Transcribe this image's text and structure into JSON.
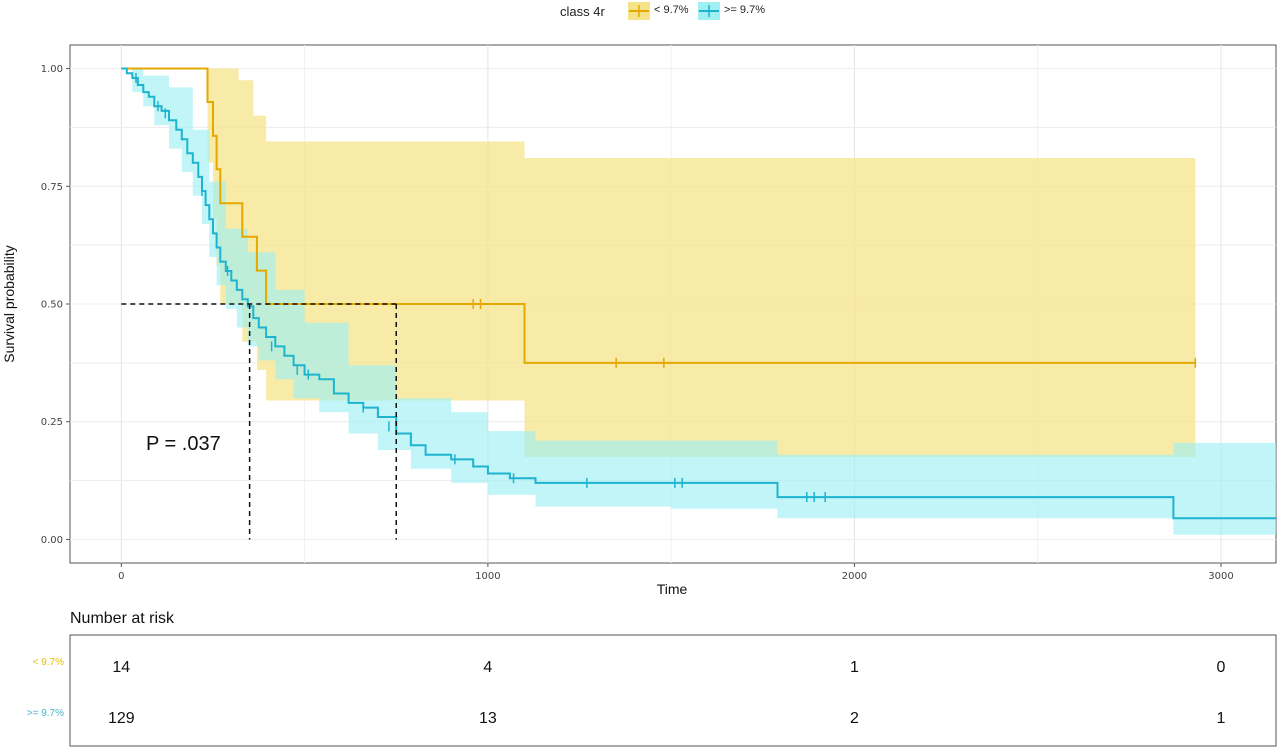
{
  "legend": {
    "title": "class 4r",
    "items": [
      {
        "label": "< 9.7%",
        "color": "#E5A800",
        "fill": "#F5E38A"
      },
      {
        "label": ">= 9.7%",
        "color": "#1EB4CF",
        "fill": "#9FEFF3"
      }
    ]
  },
  "p_value": "P = .037",
  "risk_table": {
    "title": "Number at risk",
    "rows": [
      {
        "label": "< 9.7%",
        "color": "#E5C100",
        "values": [
          "14",
          "4",
          "1",
          "0"
        ]
      },
      {
        "label": ">= 9.7%",
        "color": "#3CB8C8",
        "values": [
          "129",
          "13",
          "2",
          "1"
        ]
      }
    ]
  },
  "chart_data": {
    "type": "line",
    "subtype": "kaplan-meier step",
    "xlabel": "Time",
    "ylabel": "Survival probability",
    "xlim": [
      -140,
      3150
    ],
    "ylim": [
      -0.05,
      1.05
    ],
    "x_ticks": [
      0,
      1000,
      2000,
      3000
    ],
    "x_tick_labels": [
      "0",
      "1000",
      "2000",
      "3000"
    ],
    "y_ticks": [
      0,
      0.25,
      0.5,
      0.75,
      1.0
    ],
    "y_tick_labels": [
      "0.00",
      "0.25",
      "0.50",
      "0.75",
      "1.00"
    ],
    "grid": true,
    "legend_position": "top",
    "median_lines": [
      {
        "x": 350,
        "y": 0.5
      },
      {
        "x": 750,
        "y": 0.5
      }
    ],
    "series": [
      {
        "name": "< 9.7%",
        "color": "#E5A800",
        "band_color": "#F5E38A",
        "steps": [
          [
            0,
            1.0
          ],
          [
            235,
            0.929
          ],
          [
            250,
            0.857
          ],
          [
            260,
            0.786
          ],
          [
            270,
            0.714
          ],
          [
            330,
            0.643
          ],
          [
            370,
            0.571
          ],
          [
            395,
            0.5
          ],
          [
            1100,
            0.375
          ],
          [
            2930,
            0.375
          ]
        ],
        "lower": [
          [
            0,
            1.0
          ],
          [
            235,
            0.8
          ],
          [
            250,
            0.68
          ],
          [
            260,
            0.58
          ],
          [
            270,
            0.5
          ],
          [
            330,
            0.42
          ],
          [
            370,
            0.36
          ],
          [
            395,
            0.295
          ],
          [
            1100,
            0.175
          ],
          [
            2930,
            0.175
          ]
        ],
        "upper": [
          [
            0,
            1.0
          ],
          [
            235,
            1.0
          ],
          [
            320,
            0.975
          ],
          [
            360,
            0.9
          ],
          [
            395,
            0.845
          ],
          [
            1100,
            0.81
          ],
          [
            2930,
            0.81
          ]
        ],
        "censor": [
          [
            960,
            0.5
          ],
          [
            980,
            0.5
          ],
          [
            1350,
            0.375
          ],
          [
            1480,
            0.375
          ],
          [
            2930,
            0.375
          ]
        ]
      },
      {
        "name": ">= 9.7%",
        "color": "#1EB4CF",
        "band_color": "#9FEFF3",
        "steps": [
          [
            0,
            1.0
          ],
          [
            15,
            0.99
          ],
          [
            30,
            0.98
          ],
          [
            45,
            0.965
          ],
          [
            60,
            0.95
          ],
          [
            75,
            0.94
          ],
          [
            90,
            0.92
          ],
          [
            110,
            0.91
          ],
          [
            130,
            0.89
          ],
          [
            150,
            0.87
          ],
          [
            165,
            0.85
          ],
          [
            180,
            0.82
          ],
          [
            195,
            0.8
          ],
          [
            210,
            0.77
          ],
          [
            220,
            0.74
          ],
          [
            230,
            0.71
          ],
          [
            240,
            0.68
          ],
          [
            250,
            0.65
          ],
          [
            260,
            0.62
          ],
          [
            270,
            0.59
          ],
          [
            285,
            0.57
          ],
          [
            300,
            0.55
          ],
          [
            315,
            0.53
          ],
          [
            330,
            0.51
          ],
          [
            345,
            0.495
          ],
          [
            360,
            0.47
          ],
          [
            375,
            0.45
          ],
          [
            395,
            0.43
          ],
          [
            420,
            0.41
          ],
          [
            445,
            0.39
          ],
          [
            470,
            0.37
          ],
          [
            500,
            0.35
          ],
          [
            540,
            0.34
          ],
          [
            580,
            0.31
          ],
          [
            620,
            0.29
          ],
          [
            660,
            0.28
          ],
          [
            700,
            0.26
          ],
          [
            750,
            0.225
          ],
          [
            790,
            0.2
          ],
          [
            830,
            0.18
          ],
          [
            900,
            0.17
          ],
          [
            960,
            0.155
          ],
          [
            1000,
            0.14
          ],
          [
            1060,
            0.13
          ],
          [
            1130,
            0.12
          ],
          [
            1790,
            0.09
          ],
          [
            2870,
            0.045
          ],
          [
            3150,
            0.045
          ]
        ],
        "lower": [
          [
            0,
            1.0
          ],
          [
            30,
            0.95
          ],
          [
            60,
            0.92
          ],
          [
            90,
            0.88
          ],
          [
            130,
            0.83
          ],
          [
            165,
            0.78
          ],
          [
            195,
            0.73
          ],
          [
            220,
            0.67
          ],
          [
            240,
            0.6
          ],
          [
            260,
            0.54
          ],
          [
            285,
            0.49
          ],
          [
            315,
            0.45
          ],
          [
            345,
            0.41
          ],
          [
            375,
            0.38
          ],
          [
            420,
            0.34
          ],
          [
            470,
            0.3
          ],
          [
            540,
            0.27
          ],
          [
            620,
            0.225
          ],
          [
            700,
            0.19
          ],
          [
            790,
            0.15
          ],
          [
            900,
            0.12
          ],
          [
            1000,
            0.095
          ],
          [
            1130,
            0.07
          ],
          [
            1500,
            0.065
          ],
          [
            1790,
            0.045
          ],
          [
            2870,
            0.01
          ],
          [
            3150,
            0.01
          ]
        ],
        "upper": [
          [
            0,
            1.0
          ],
          [
            60,
            0.985
          ],
          [
            130,
            0.96
          ],
          [
            195,
            0.87
          ],
          [
            240,
            0.76
          ],
          [
            285,
            0.66
          ],
          [
            345,
            0.61
          ],
          [
            420,
            0.53
          ],
          [
            500,
            0.46
          ],
          [
            620,
            0.37
          ],
          [
            750,
            0.3
          ],
          [
            900,
            0.27
          ],
          [
            1000,
            0.23
          ],
          [
            1130,
            0.21
          ],
          [
            1790,
            0.18
          ],
          [
            2870,
            0.205
          ],
          [
            3150,
            0.205
          ]
        ],
        "censor": [
          [
            40,
            0.98
          ],
          [
            100,
            0.92
          ],
          [
            120,
            0.905
          ],
          [
            220,
            0.74
          ],
          [
            290,
            0.57
          ],
          [
            410,
            0.41
          ],
          [
            480,
            0.36
          ],
          [
            510,
            0.35
          ],
          [
            660,
            0.28
          ],
          [
            730,
            0.24
          ],
          [
            910,
            0.17
          ],
          [
            1070,
            0.13
          ],
          [
            1270,
            0.12
          ],
          [
            1510,
            0.12
          ],
          [
            1530,
            0.12
          ],
          [
            1870,
            0.09
          ],
          [
            1890,
            0.09
          ],
          [
            1920,
            0.09
          ]
        ]
      }
    ]
  }
}
